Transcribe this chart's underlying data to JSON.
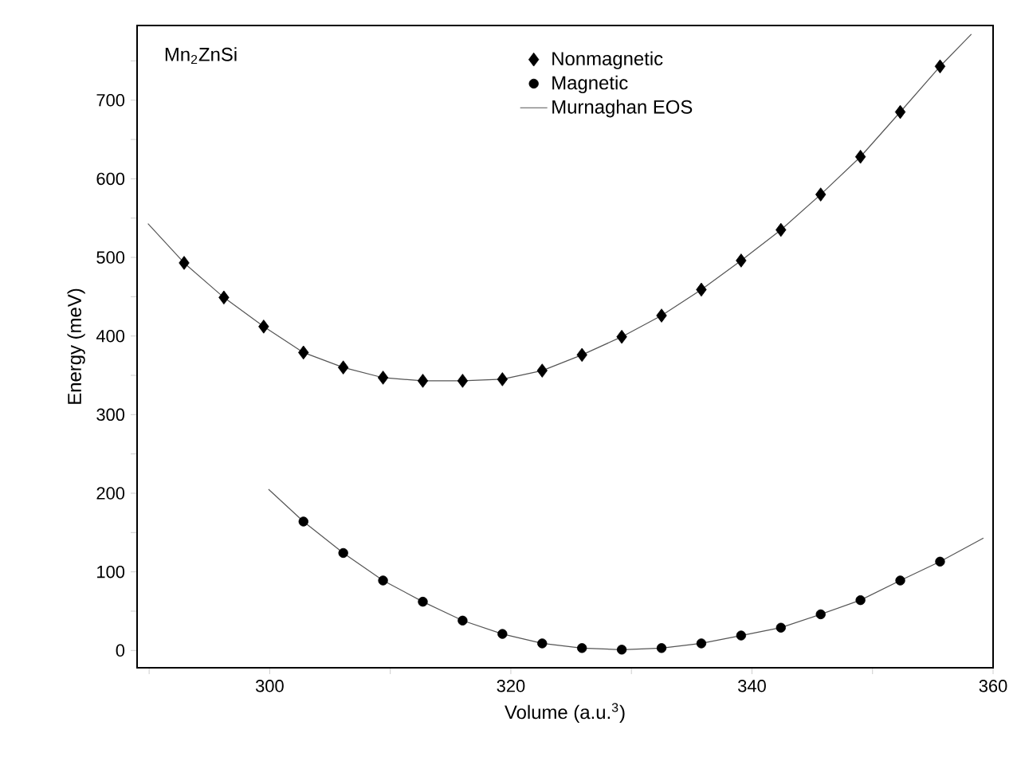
{
  "chart_data": {
    "type": "scatter",
    "xlabel": "Volume (a.u.$^{3}$)",
    "ylabel": "Energy (meV)",
    "annotations": [
      "Mn$_{2}$ZnSi"
    ],
    "xlim": [
      289,
      360
    ],
    "ylim": [
      -22,
      795
    ],
    "xticks": [
      {
        "value": 290,
        "label": null
      },
      300,
      {
        "value": 310,
        "label": null
      },
      320,
      {
        "value": 330,
        "label": null
      },
      340,
      {
        "value": 350,
        "label": null
      },
      360
    ],
    "yticks": [
      0,
      {
        "value": 50,
        "label": null
      },
      100,
      {
        "value": 150,
        "label": null
      },
      200,
      {
        "value": 250,
        "label": null
      },
      300,
      {
        "value": 350,
        "label": null
      },
      400,
      {
        "value": 450,
        "label": null
      },
      500,
      {
        "value": 550,
        "label": null
      },
      600,
      {
        "value": 650,
        "label": null
      },
      700,
      {
        "value": 750,
        "label": null
      }
    ],
    "legend": "top",
    "series": [
      {
        "name": "Nonmagnetic",
        "marker": "diamond",
        "color": "#000000",
        "x": [
          292.9,
          296.2,
          299.5,
          302.8,
          306.1,
          309.4,
          312.7,
          316.0,
          319.3,
          322.6,
          325.9,
          329.2,
          332.5,
          335.8,
          339.1,
          342.4,
          345.7,
          349.0,
          352.3,
          355.6
        ],
        "values": [
          493,
          449,
          412,
          379,
          360,
          347,
          343,
          343,
          345,
          356,
          376,
          399,
          426,
          459,
          496,
          535,
          580,
          628,
          685,
          743
        ]
      },
      {
        "name": "Magnetic",
        "marker": "circle",
        "color": "#000000",
        "x": [
          302.8,
          306.1,
          309.4,
          312.7,
          316.0,
          319.3,
          322.6,
          325.9,
          329.2,
          332.5,
          335.8,
          339.1,
          342.4,
          345.7,
          349.0,
          352.3,
          355.6
        ],
        "values": [
          164,
          124,
          89,
          62,
          38,
          21,
          9,
          3,
          1,
          3,
          9,
          19,
          29,
          46,
          64,
          89,
          113
        ]
      },
      {
        "name": "Murnaghan EOS",
        "type": "line",
        "marker": "none",
        "color": "#555555",
        "x": [
          289.9,
          292.9,
          296.2,
          299.5,
          302.8,
          306.1,
          309.4,
          312.7,
          316.0,
          319.3,
          322.6,
          325.9,
          329.2,
          332.5,
          335.8,
          339.1,
          342.4,
          345.7,
          349.0,
          352.3,
          355.6,
          358.2
        ],
        "values": [
          543,
          493,
          449,
          412,
          379,
          360,
          347,
          343,
          343,
          345,
          356,
          376,
          399,
          426,
          459,
          496,
          535,
          580,
          628,
          685,
          743,
          784
        ]
      },
      {
        "type": "line",
        "marker": "none",
        "color": "#555555",
        "x": [
          299.9,
          302.8,
          306.1,
          309.4,
          312.7,
          316.0,
          319.3,
          322.6,
          325.9,
          329.2,
          332.5,
          335.8,
          339.1,
          342.4,
          345.7,
          349.0,
          352.3,
          355.6,
          359.2
        ],
        "values": [
          205,
          164,
          124,
          89,
          62,
          38,
          21,
          9,
          3,
          1,
          3,
          9,
          19,
          29,
          46,
          64,
          89,
          113,
          143
        ]
      }
    ]
  }
}
